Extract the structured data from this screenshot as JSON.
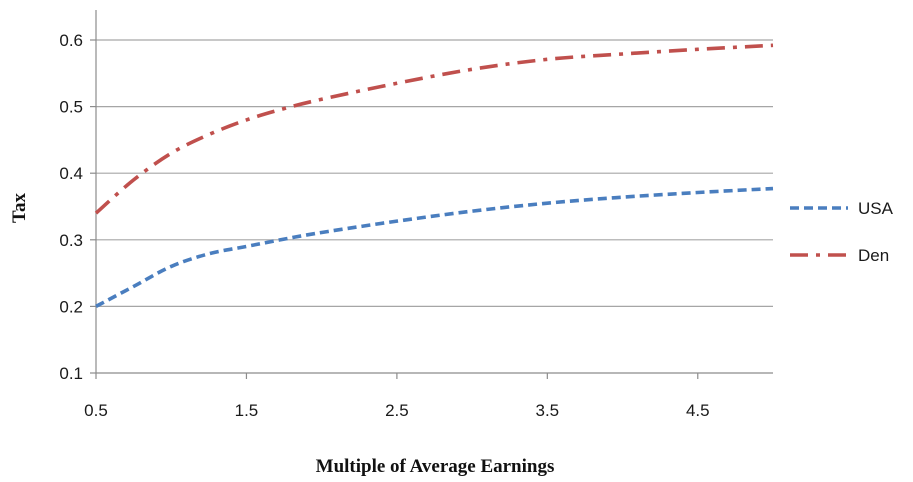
{
  "chart_data": {
    "type": "line",
    "title": "",
    "xlabel": "Multiple of Average Earnings",
    "ylabel": "Tax",
    "xlim": [
      0.5,
      5.0
    ],
    "ylim": [
      0.1,
      0.6
    ],
    "xticks": [
      "0.5",
      "1.5",
      "2.5",
      "3.5",
      "4.5"
    ],
    "xtick_values": [
      0.5,
      1.5,
      2.5,
      3.5,
      4.5
    ],
    "yticks": [
      "0.1",
      "0.2",
      "0.3",
      "0.4",
      "0.5",
      "0.6"
    ],
    "ytick_values": [
      0.1,
      0.2,
      0.3,
      0.4,
      0.5,
      0.6
    ],
    "grid": "horizontal",
    "legend_position": "right",
    "series": [
      {
        "name": "USA",
        "color": "#4a7ebf",
        "style": "dashed",
        "x": [
          0.5,
          0.75,
          1.0,
          1.25,
          1.5,
          1.75,
          2.0,
          2.5,
          3.0,
          3.5,
          4.0,
          4.5,
          5.0
        ],
        "values": [
          0.2,
          0.23,
          0.26,
          0.279,
          0.29,
          0.301,
          0.311,
          0.328,
          0.343,
          0.355,
          0.364,
          0.371,
          0.377
        ]
      },
      {
        "name": "Den",
        "color": "#c0504d",
        "style": "dash-dot",
        "x": [
          0.5,
          0.75,
          1.0,
          1.25,
          1.5,
          1.75,
          2.0,
          2.5,
          3.0,
          3.5,
          4.0,
          4.5,
          5.0
        ],
        "values": [
          0.34,
          0.39,
          0.43,
          0.458,
          0.48,
          0.497,
          0.511,
          0.535,
          0.556,
          0.571,
          0.579,
          0.586,
          0.592
        ]
      }
    ]
  }
}
